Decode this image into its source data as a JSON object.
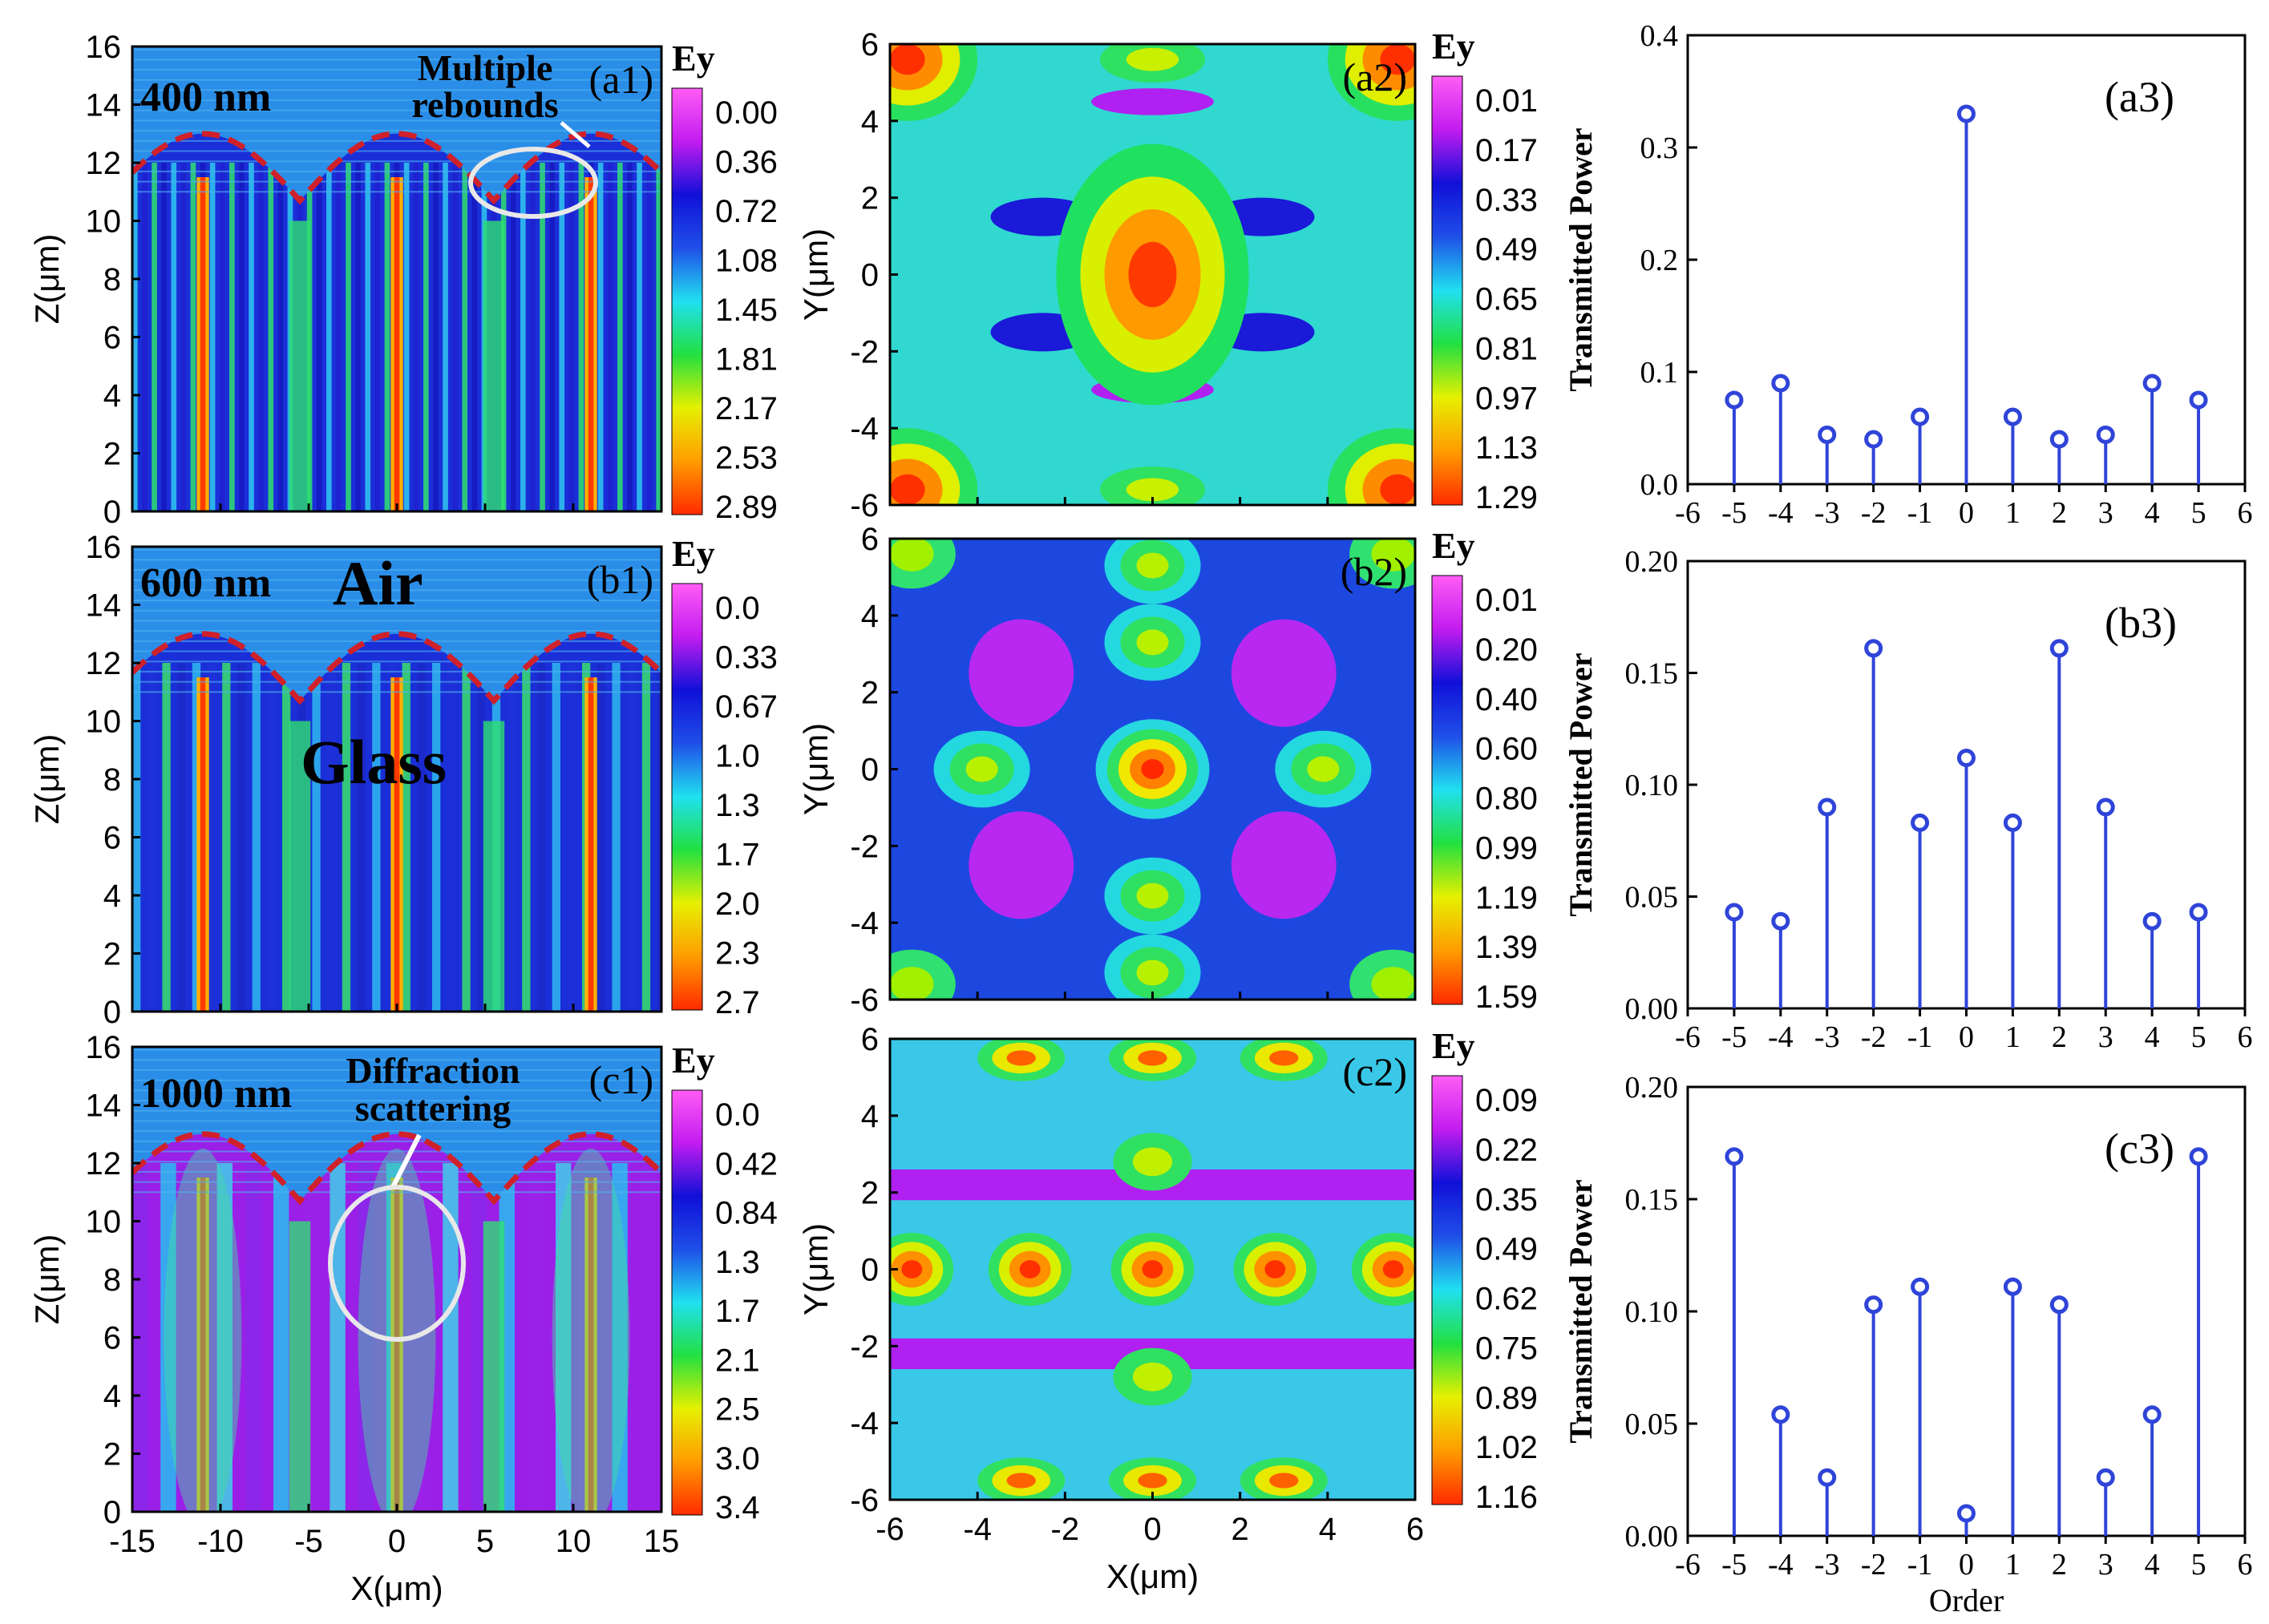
{
  "colors": {
    "map_stops": [
      "#ff2a00",
      "#ff9c00",
      "#e6f000",
      "#22e040",
      "#20e0f0",
      "#1f4fe8",
      "#1010d8",
      "#c21cf0",
      "#ff5cf5"
    ],
    "stem": "#2f44d8",
    "marker": "#2f44d8",
    "annotation_white": "#ffffff",
    "boundary_red": "#d0202a",
    "air_label": "#e02028"
  },
  "field_maps": [
    {
      "id": "a1",
      "panel_label": "(a1)",
      "wavelength_label": "400 nm",
      "annotation": [
        "Multiple",
        "rebounds"
      ],
      "colorbar_title": "Ey",
      "colorbar_ticks": [
        "0.00",
        "0.36",
        "0.72",
        "1.08",
        "1.45",
        "1.81",
        "2.17",
        "2.53",
        "2.89"
      ],
      "xlabel": "",
      "ylabel": "Z(μm)",
      "xticks": [],
      "yticks": [
        "0",
        "2",
        "4",
        "6",
        "8",
        "10",
        "12",
        "14",
        "16"
      ]
    },
    {
      "id": "b1",
      "panel_label": "(b1)",
      "wavelength_label": "600 nm",
      "medium_top": "Air",
      "medium_bottom": "Glass",
      "colorbar_title": "Ey",
      "colorbar_ticks": [
        "0.0",
        "0.33",
        "0.67",
        "1.0",
        "1.3",
        "1.7",
        "2.0",
        "2.3",
        "2.7"
      ],
      "xlabel": "",
      "ylabel": "Z(μm)",
      "xticks": [],
      "yticks": [
        "0",
        "2",
        "4",
        "6",
        "8",
        "10",
        "12",
        "14",
        "16"
      ]
    },
    {
      "id": "c1",
      "panel_label": "(c1)",
      "wavelength_label": "1000 nm",
      "annotation": [
        "Diffraction",
        "scattering"
      ],
      "colorbar_title": "Ey",
      "colorbar_ticks": [
        "0.0",
        "0.42",
        "0.84",
        "1.3",
        "1.7",
        "2.1",
        "2.5",
        "3.0",
        "3.4"
      ],
      "xlabel": "X(μm)",
      "ylabel": "Z(μm)",
      "xticks": [
        "-15",
        "-10",
        "-5",
        "0",
        "5",
        "10",
        "15"
      ],
      "yticks": [
        "0",
        "2",
        "4",
        "6",
        "8",
        "10",
        "12",
        "14",
        "16"
      ]
    },
    {
      "id": "a2",
      "panel_label": "(a2)",
      "colorbar_title": "Ey",
      "colorbar_ticks": [
        "0.01",
        "0.17",
        "0.33",
        "0.49",
        "0.65",
        "0.81",
        "0.97",
        "1.13",
        "1.29"
      ],
      "xlabel": "",
      "ylabel": "Y(μm)",
      "xticks": [],
      "yticks": [
        "-6",
        "-4",
        "-2",
        "0",
        "2",
        "4",
        "6"
      ]
    },
    {
      "id": "b2",
      "panel_label": "(b2)",
      "colorbar_title": "Ey",
      "colorbar_ticks": [
        "0.01",
        "0.20",
        "0.40",
        "0.60",
        "0.80",
        "0.99",
        "1.19",
        "1.39",
        "1.59"
      ],
      "xlabel": "",
      "ylabel": "Y(μm)",
      "xticks": [],
      "yticks": [
        "-6",
        "-4",
        "-2",
        "0",
        "2",
        "4",
        "6"
      ]
    },
    {
      "id": "c2",
      "panel_label": "(c2)",
      "colorbar_title": "Ey",
      "colorbar_ticks": [
        "0.09",
        "0.22",
        "0.35",
        "0.49",
        "0.62",
        "0.75",
        "0.89",
        "1.02",
        "1.16"
      ],
      "xlabel": "X(μm)",
      "ylabel": "Y(μm)",
      "xticks": [
        "-6",
        "-4",
        "-2",
        "0",
        "2",
        "4",
        "6"
      ],
      "yticks": [
        "-6",
        "-4",
        "-2",
        "0",
        "2",
        "4",
        "6"
      ]
    }
  ],
  "chart_data": [
    {
      "id": "a3",
      "type": "stem",
      "panel_label": "(a3)",
      "xlabel": "",
      "ylabel": "Transmitted Power",
      "x": [
        -5,
        -4,
        -3,
        -2,
        -1,
        0,
        1,
        2,
        3,
        4,
        5
      ],
      "values": [
        0.075,
        0.09,
        0.044,
        0.04,
        0.06,
        0.33,
        0.06,
        0.04,
        0.044,
        0.09,
        0.075
      ],
      "xlim": [
        -6,
        6
      ],
      "ylim": [
        0,
        0.4
      ],
      "xticks": [
        "-6",
        "-5",
        "-4",
        "-3",
        "-2",
        "-1",
        "0",
        "1",
        "2",
        "3",
        "4",
        "5",
        "6"
      ],
      "yticks": [
        "0.0",
        "0.1",
        "0.2",
        "0.3",
        "0.4"
      ]
    },
    {
      "id": "b3",
      "type": "stem",
      "panel_label": "(b3)",
      "xlabel": "",
      "ylabel": "Transmitted Power",
      "x": [
        -5,
        -4,
        -3,
        -2,
        -1,
        0,
        1,
        2,
        3,
        4,
        5
      ],
      "values": [
        0.043,
        0.039,
        0.09,
        0.161,
        0.083,
        0.112,
        0.083,
        0.161,
        0.09,
        0.039,
        0.043
      ],
      "xlim": [
        -6,
        6
      ],
      "ylim": [
        0,
        0.2
      ],
      "xticks": [
        "-6",
        "-5",
        "-4",
        "-3",
        "-2",
        "-1",
        "0",
        "1",
        "2",
        "3",
        "4",
        "5",
        "6"
      ],
      "yticks": [
        "0.00",
        "0.05",
        "0.10",
        "0.15",
        "0.20"
      ]
    },
    {
      "id": "c3",
      "type": "stem",
      "panel_label": "(c3)",
      "xlabel": "Order",
      "ylabel": "Transmitted Power",
      "x": [
        -5,
        -4,
        -3,
        -2,
        -1,
        0,
        1,
        2,
        3,
        4,
        5
      ],
      "values": [
        0.169,
        0.054,
        0.026,
        0.103,
        0.111,
        0.01,
        0.111,
        0.103,
        0.026,
        0.054,
        0.169
      ],
      "xlim": [
        -6,
        6
      ],
      "ylim": [
        0,
        0.2
      ],
      "xticks": [
        "-6",
        "-5",
        "-4",
        "-3",
        "-2",
        "-1",
        "0",
        "1",
        "2",
        "3",
        "4",
        "5",
        "6"
      ],
      "yticks": [
        "0.00",
        "0.05",
        "0.10",
        "0.15",
        "0.20"
      ]
    }
  ]
}
